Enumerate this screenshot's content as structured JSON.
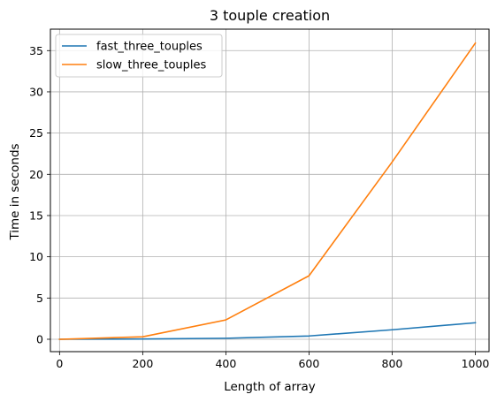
{
  "chart_data": {
    "type": "line",
    "title": "3 touple creation",
    "xlabel": "Length of array",
    "ylabel": "Time in seconds",
    "xlim": [
      -22,
      1033
    ],
    "ylim": [
      -1.5,
      37.6
    ],
    "xticks": [
      0,
      200,
      400,
      600,
      800,
      1000
    ],
    "yticks": [
      0,
      5,
      10,
      15,
      20,
      25,
      30,
      35
    ],
    "grid": true,
    "legend_position": "top-left",
    "series": [
      {
        "name": "fast_three_touples",
        "color": "#1f77b4",
        "x": [
          0,
          200,
          400,
          600,
          800,
          1000
        ],
        "y": [
          0,
          0.03,
          0.12,
          0.4,
          1.15,
          2.0
        ]
      },
      {
        "name": "slow_three_touples",
        "color": "#ff7f0e",
        "x": [
          0,
          200,
          400,
          600,
          800,
          1000
        ],
        "y": [
          0,
          0.3,
          2.35,
          7.7,
          21.5,
          35.9
        ]
      }
    ]
  }
}
